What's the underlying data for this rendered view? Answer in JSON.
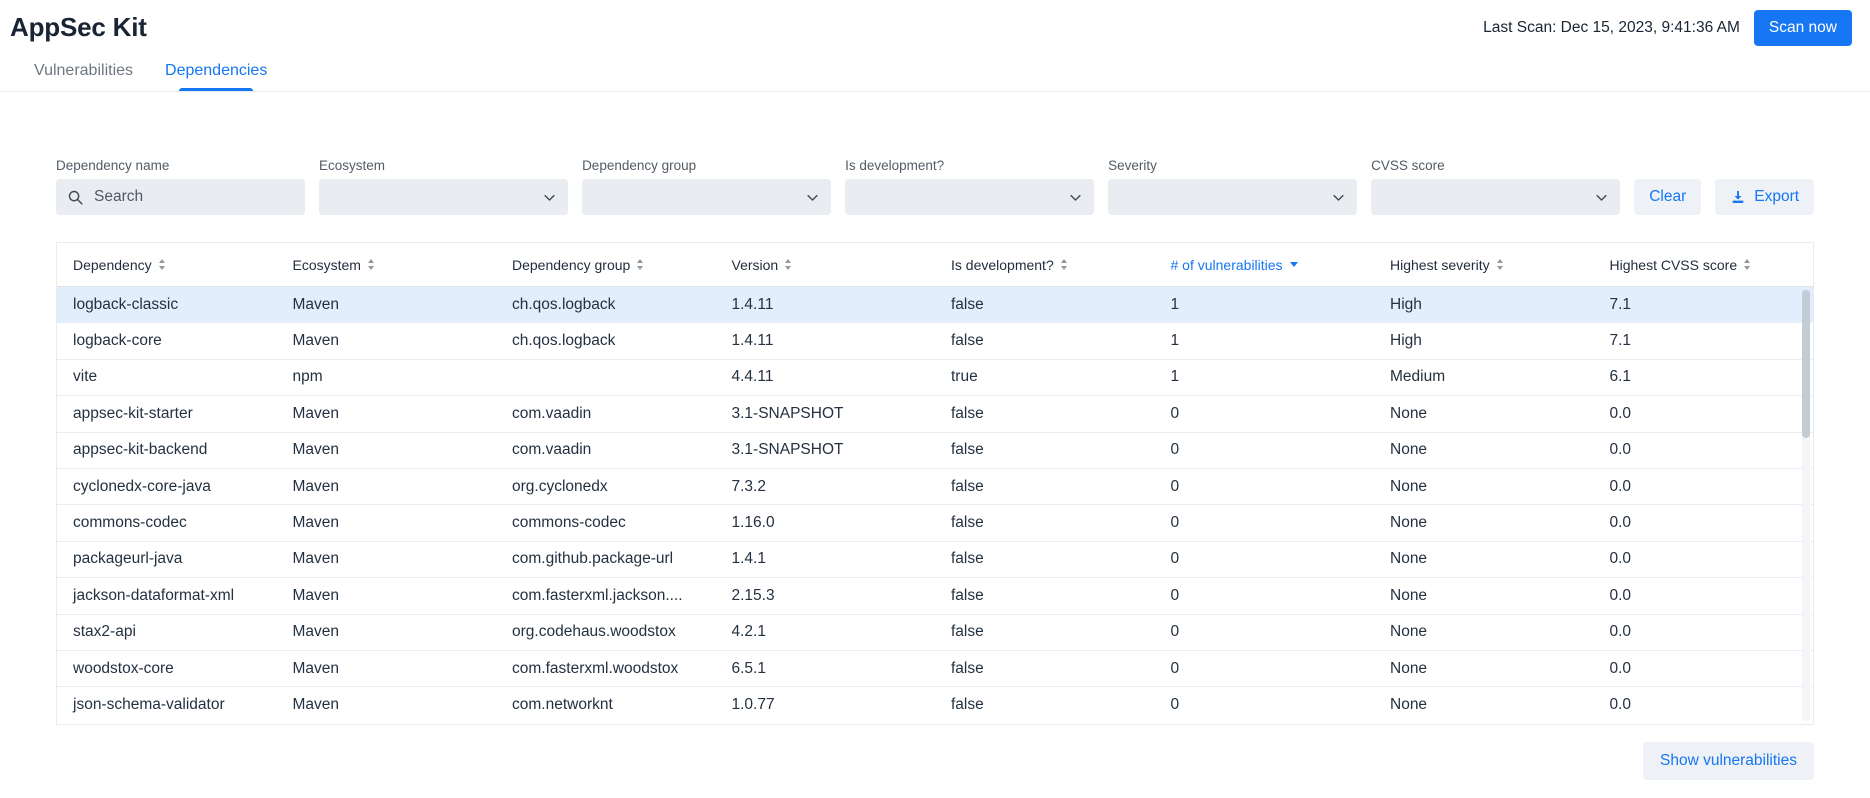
{
  "header": {
    "title": "AppSec Kit",
    "last_scan": "Last Scan: Dec 15, 2023, 9:41:36 AM",
    "scan_button": "Scan now"
  },
  "tabs": [
    {
      "label": "Vulnerabilities",
      "active": false
    },
    {
      "label": "Dependencies",
      "active": true
    }
  ],
  "filters": {
    "search": {
      "label": "Dependency name",
      "placeholder": "Search",
      "value": ""
    },
    "selects": [
      {
        "label": "Ecosystem",
        "value": ""
      },
      {
        "label": "Dependency group",
        "value": ""
      },
      {
        "label": "Is development?",
        "value": ""
      },
      {
        "label": "Severity",
        "value": ""
      },
      {
        "label": "CVSS score",
        "value": ""
      }
    ],
    "clear_button": "Clear",
    "export_button": "Export"
  },
  "table": {
    "columns": [
      {
        "label": "Dependency",
        "sort": "unsorted"
      },
      {
        "label": "Ecosystem",
        "sort": "unsorted"
      },
      {
        "label": "Dependency group",
        "sort": "unsorted"
      },
      {
        "label": "Version",
        "sort": "unsorted"
      },
      {
        "label": "Is development?",
        "sort": "unsorted"
      },
      {
        "label": "# of vulnerabilities",
        "sort": "desc"
      },
      {
        "label": "Highest severity",
        "sort": "unsorted"
      },
      {
        "label": "Highest CVSS score",
        "sort": "unsorted"
      }
    ],
    "rows": [
      {
        "dependency": "logback-classic",
        "ecosystem": "Maven",
        "dependency_group": "ch.qos.logback",
        "version": "1.4.11",
        "is_development": "false",
        "num_vulnerabilities": "1",
        "highest_severity": "High",
        "highest_cvss": "7.1",
        "selected": true
      },
      {
        "dependency": "logback-core",
        "ecosystem": "Maven",
        "dependency_group": "ch.qos.logback",
        "version": "1.4.11",
        "is_development": "false",
        "num_vulnerabilities": "1",
        "highest_severity": "High",
        "highest_cvss": "7.1",
        "selected": false
      },
      {
        "dependency": "vite",
        "ecosystem": "npm",
        "dependency_group": "",
        "version": "4.4.11",
        "is_development": "true",
        "num_vulnerabilities": "1",
        "highest_severity": "Medium",
        "highest_cvss": "6.1",
        "selected": false
      },
      {
        "dependency": "appsec-kit-starter",
        "ecosystem": "Maven",
        "dependency_group": "com.vaadin",
        "version": "3.1-SNAPSHOT",
        "is_development": "false",
        "num_vulnerabilities": "0",
        "highest_severity": "None",
        "highest_cvss": "0.0",
        "selected": false
      },
      {
        "dependency": "appsec-kit-backend",
        "ecosystem": "Maven",
        "dependency_group": "com.vaadin",
        "version": "3.1-SNAPSHOT",
        "is_development": "false",
        "num_vulnerabilities": "0",
        "highest_severity": "None",
        "highest_cvss": "0.0",
        "selected": false
      },
      {
        "dependency": "cyclonedx-core-java",
        "ecosystem": "Maven",
        "dependency_group": "org.cyclonedx",
        "version": "7.3.2",
        "is_development": "false",
        "num_vulnerabilities": "0",
        "highest_severity": "None",
        "highest_cvss": "0.0",
        "selected": false
      },
      {
        "dependency": "commons-codec",
        "ecosystem": "Maven",
        "dependency_group": "commons-codec",
        "version": "1.16.0",
        "is_development": "false",
        "num_vulnerabilities": "0",
        "highest_severity": "None",
        "highest_cvss": "0.0",
        "selected": false
      },
      {
        "dependency": "packageurl-java",
        "ecosystem": "Maven",
        "dependency_group": "com.github.package-url",
        "version": "1.4.1",
        "is_development": "false",
        "num_vulnerabilities": "0",
        "highest_severity": "None",
        "highest_cvss": "0.0",
        "selected": false
      },
      {
        "dependency": "jackson-dataformat-xml",
        "ecosystem": "Maven",
        "dependency_group": "com.fasterxml.jackson....",
        "version": "2.15.3",
        "is_development": "false",
        "num_vulnerabilities": "0",
        "highest_severity": "None",
        "highest_cvss": "0.0",
        "selected": false
      },
      {
        "dependency": "stax2-api",
        "ecosystem": "Maven",
        "dependency_group": "org.codehaus.woodstox",
        "version": "4.2.1",
        "is_development": "false",
        "num_vulnerabilities": "0",
        "highest_severity": "None",
        "highest_cvss": "0.0",
        "selected": false
      },
      {
        "dependency": "woodstox-core",
        "ecosystem": "Maven",
        "dependency_group": "com.fasterxml.woodstox",
        "version": "6.5.1",
        "is_development": "false",
        "num_vulnerabilities": "0",
        "highest_severity": "None",
        "highest_cvss": "0.0",
        "selected": false
      },
      {
        "dependency": "json-schema-validator",
        "ecosystem": "Maven",
        "dependency_group": "com.networknt",
        "version": "1.0.77",
        "is_development": "false",
        "num_vulnerabilities": "0",
        "highest_severity": "None",
        "highest_cvss": "0.0",
        "selected": false
      }
    ]
  },
  "footer": {
    "show_vulnerabilities_button": "Show vulnerabilities"
  },
  "colors": {
    "primary": "#1676f3",
    "selected_row": "#e3eefc"
  }
}
